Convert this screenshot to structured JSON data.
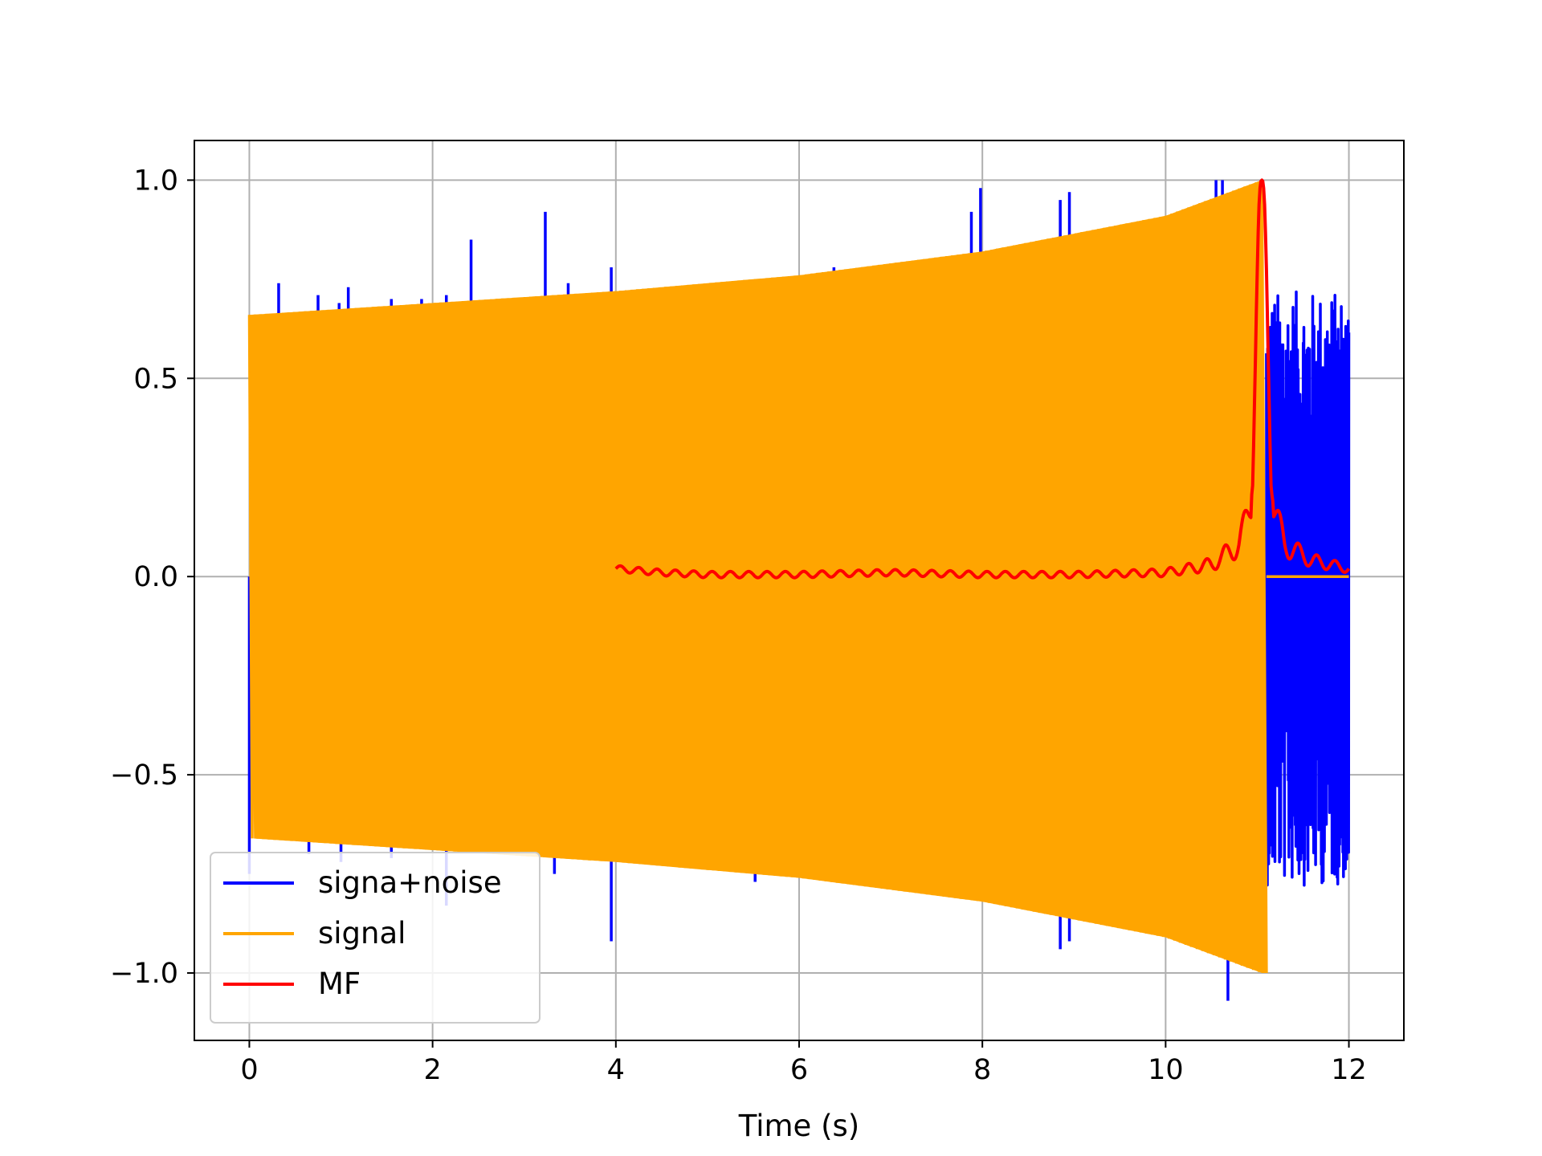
{
  "chart_data": {
    "type": "line",
    "title": "",
    "xlabel": "Time (s)",
    "ylabel": "",
    "xlim": [
      -0.6,
      12.6
    ],
    "ylim": [
      -1.17,
      1.1
    ],
    "grid": true,
    "legend_position": "lower-left",
    "x_ticks": [
      0,
      2,
      4,
      6,
      8,
      10,
      12
    ],
    "x_tick_labels": [
      "0",
      "2",
      "4",
      "6",
      "8",
      "10",
      "12"
    ],
    "y_ticks": [
      -1.0,
      -0.5,
      0.0,
      0.5,
      1.0
    ],
    "y_tick_labels": [
      "−1.0",
      "−0.5",
      "0.0",
      "0.5",
      "1.0"
    ],
    "series": [
      {
        "name": "signa+noise",
        "color": "#0000ff",
        "description": "signal plus noise; spikes above the chirp envelope, then pure noise after 11.1 s",
        "spikes": [
          {
            "x": 0.0,
            "y": -0.75
          },
          {
            "x": 0.32,
            "y": 0.74
          },
          {
            "x": 0.65,
            "y": -0.7
          },
          {
            "x": 0.75,
            "y": 0.71
          },
          {
            "x": 0.98,
            "y": 0.69
          },
          {
            "x": 1.0,
            "y": -0.72
          },
          {
            "x": 1.08,
            "y": 0.73
          },
          {
            "x": 1.55,
            "y": 0.7
          },
          {
            "x": 1.55,
            "y": -0.71
          },
          {
            "x": 1.88,
            "y": 0.7
          },
          {
            "x": 2.15,
            "y": 0.71
          },
          {
            "x": 2.15,
            "y": -0.83
          },
          {
            "x": 2.42,
            "y": 0.85
          },
          {
            "x": 3.23,
            "y": 0.92
          },
          {
            "x": 3.33,
            "y": -0.75
          },
          {
            "x": 3.48,
            "y": 0.74
          },
          {
            "x": 3.95,
            "y": 0.78
          },
          {
            "x": 3.95,
            "y": -0.92
          },
          {
            "x": 5.52,
            "y": -0.77
          },
          {
            "x": 6.38,
            "y": 0.78
          },
          {
            "x": 7.88,
            "y": 0.92
          },
          {
            "x": 7.98,
            "y": 0.98
          },
          {
            "x": 8.85,
            "y": 0.95
          },
          {
            "x": 8.85,
            "y": -0.94
          },
          {
            "x": 8.95,
            "y": 0.97
          },
          {
            "x": 8.95,
            "y": -0.92
          },
          {
            "x": 10.55,
            "y": 1.0
          },
          {
            "x": 10.62,
            "y": 1.0
          },
          {
            "x": 10.68,
            "y": -1.07
          }
        ],
        "noise_region": {
          "x_start": 11.1,
          "x_end": 12.0,
          "y_min": -0.78,
          "y_max": 0.72
        }
      },
      {
        "name": "signal",
        "color": "#ffa500",
        "description": "chirp with envelope growing from 0.66 at t=0 to 1.0 at t=11.05, zero afterwards",
        "envelope": [
          {
            "x": 0.0,
            "y": 0.66
          },
          {
            "x": 2.0,
            "y": 0.69
          },
          {
            "x": 4.0,
            "y": 0.72
          },
          {
            "x": 6.0,
            "y": 0.76
          },
          {
            "x": 8.0,
            "y": 0.82
          },
          {
            "x": 10.0,
            "y": 0.91
          },
          {
            "x": 11.05,
            "y": 1.0
          }
        ],
        "zero_after": 11.1
      },
      {
        "name": "MF",
        "color": "#ff0000",
        "description": "matched filter output, peak 1.0 at t=11.05",
        "points": [
          {
            "x": 4.0,
            "y": 0.02
          },
          {
            "x": 4.5,
            "y": 0.01
          },
          {
            "x": 5.0,
            "y": 0.005
          },
          {
            "x": 6.0,
            "y": 0.005
          },
          {
            "x": 7.0,
            "y": 0.01
          },
          {
            "x": 8.0,
            "y": 0.005
          },
          {
            "x": 9.0,
            "y": 0.005
          },
          {
            "x": 10.0,
            "y": 0.01
          },
          {
            "x": 10.5,
            "y": 0.03
          },
          {
            "x": 10.8,
            "y": 0.08
          },
          {
            "x": 10.95,
            "y": 0.2
          },
          {
            "x": 11.05,
            "y": 1.0
          },
          {
            "x": 11.15,
            "y": 0.2
          },
          {
            "x": 11.3,
            "y": 0.08
          },
          {
            "x": 11.6,
            "y": 0.04
          },
          {
            "x": 12.0,
            "y": 0.02
          }
        ]
      }
    ]
  }
}
